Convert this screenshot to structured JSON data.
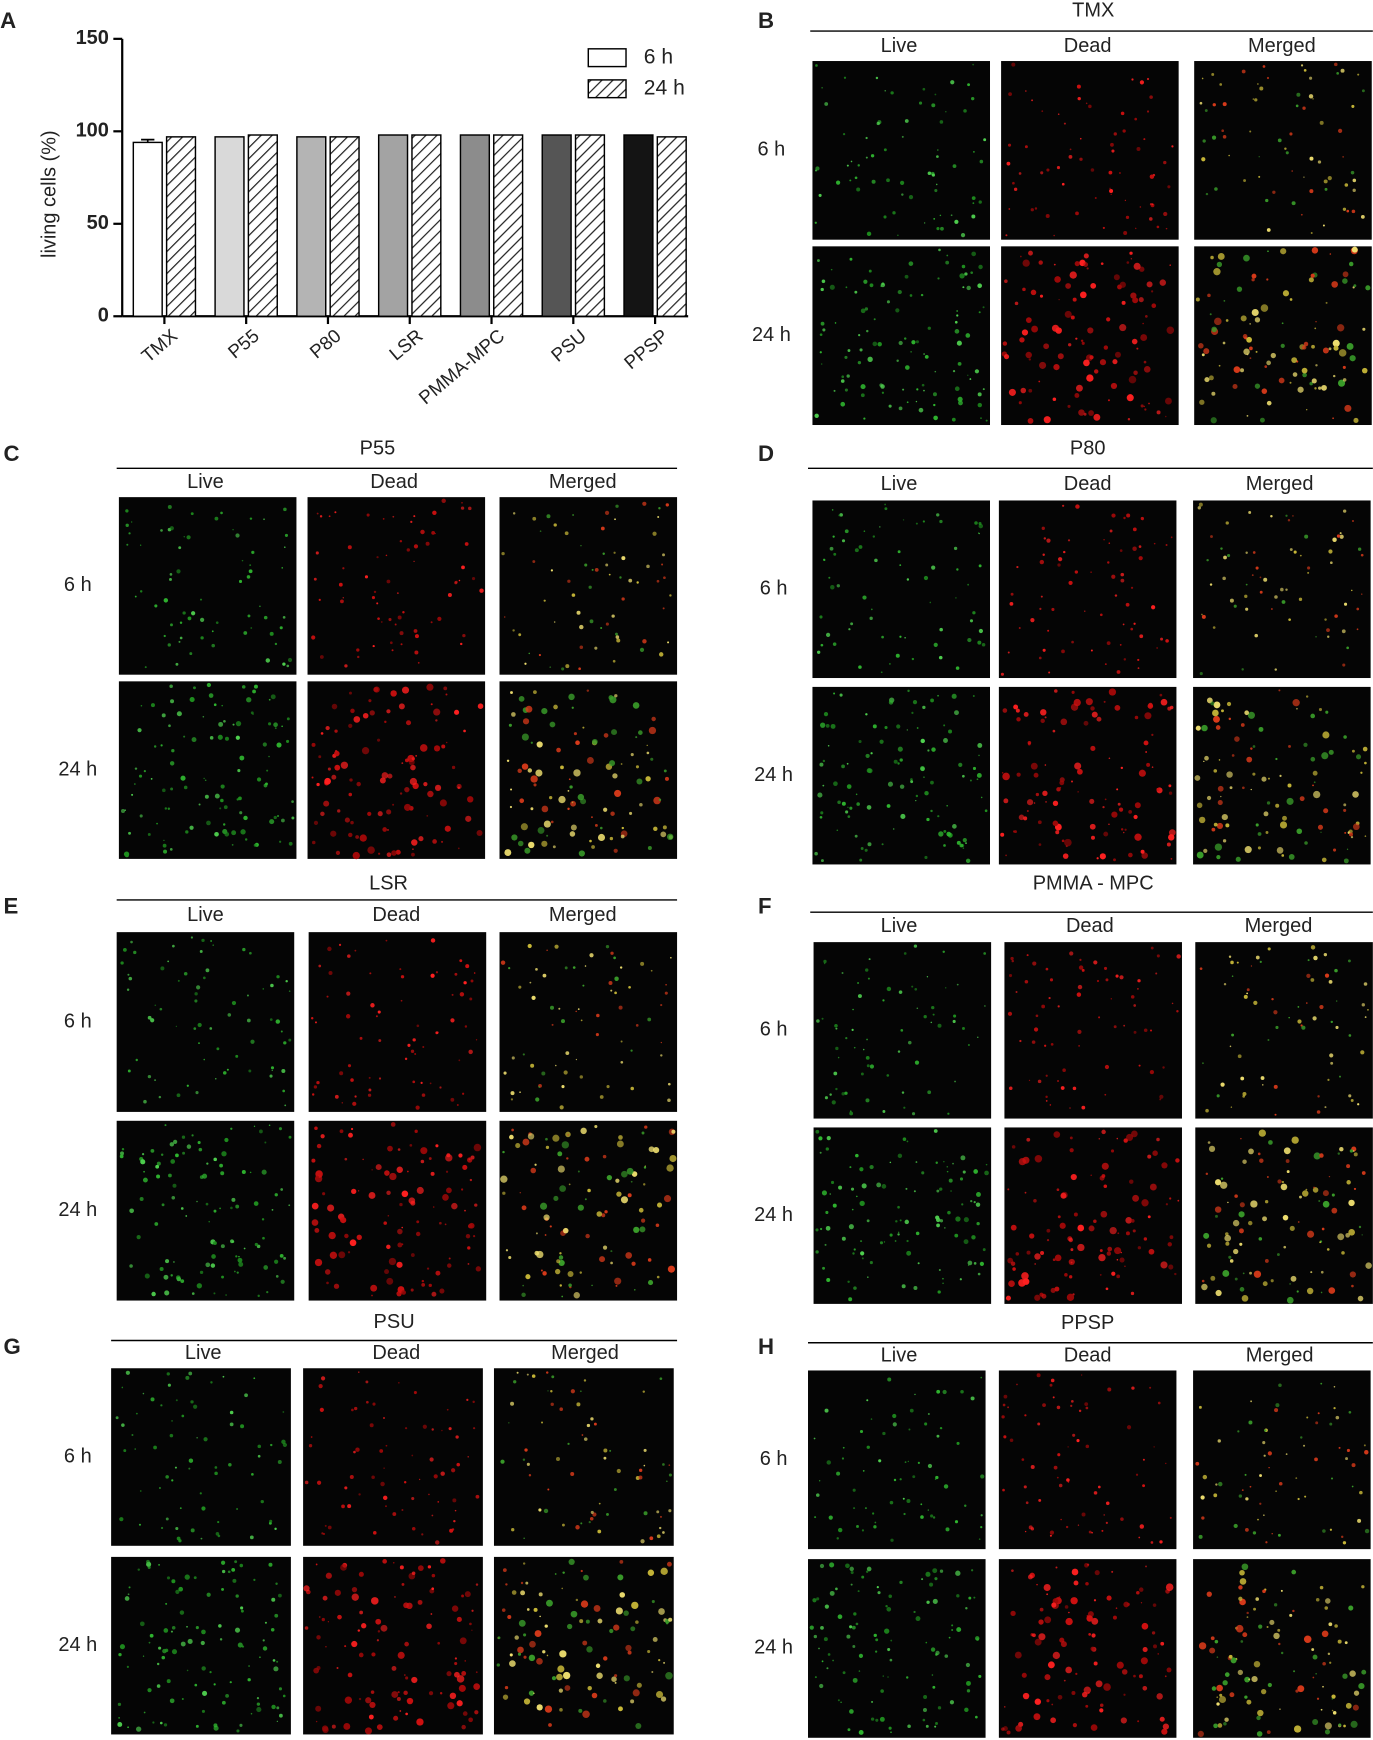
{
  "chart_letter": "A",
  "chart_data": {
    "type": "bar",
    "ylabel": "living cells (%)",
    "categories": [
      "TMX",
      "P55",
      "P80",
      "LSR",
      "PMMA-MPC",
      "PSU",
      "PPSP"
    ],
    "series": [
      {
        "name": "6 h",
        "colors": [
          "#ffffff",
          "#d9d9d9",
          "#b4b4b4",
          "#a3a3a3",
          "#8c8c8c",
          "#555555",
          "#141414"
        ],
        "values": [
          94,
          97,
          97,
          98,
          98,
          98,
          98
        ],
        "errors": [
          1.5,
          null,
          null,
          null,
          null,
          null,
          null
        ]
      },
      {
        "name": "24 h",
        "hatch": true,
        "values": [
          97,
          98,
          97,
          98,
          98,
          98,
          97
        ]
      }
    ],
    "ylim": [
      0,
      150
    ],
    "yticks": [
      0,
      50,
      100,
      150
    ],
    "legend": "top-right"
  },
  "panels": [
    {
      "letter": "B",
      "title": "TMX",
      "columns": [
        "Live",
        "Dead",
        "Merged"
      ],
      "rows": [
        "6 h",
        "24 h"
      ]
    },
    {
      "letter": "C",
      "title": "P55",
      "columns": [
        "Live",
        "Dead",
        "Merged"
      ],
      "rows": [
        "6 h",
        "24 h"
      ]
    },
    {
      "letter": "D",
      "title": "P80",
      "columns": [
        "Live",
        "Dead",
        "Merged"
      ],
      "rows": [
        "6 h",
        "24 h"
      ]
    },
    {
      "letter": "E",
      "title": "LSR",
      "columns": [
        "Live",
        "Dead",
        "Merged"
      ],
      "rows": [
        "6 h",
        "24 h"
      ]
    },
    {
      "letter": "F",
      "title": "PMMA - MPC",
      "columns": [
        "Live",
        "Dead",
        "Merged"
      ],
      "rows": [
        "6 h",
        "24 h"
      ]
    },
    {
      "letter": "G",
      "title": "PSU",
      "columns": [
        "Live",
        "Dead",
        "Merged"
      ],
      "rows": [
        "6 h",
        "24 h"
      ]
    },
    {
      "letter": "H",
      "title": "PPSP",
      "columns": [
        "Live",
        "Dead",
        "Merged"
      ],
      "rows": [
        "6 h",
        "24 h"
      ]
    }
  ]
}
